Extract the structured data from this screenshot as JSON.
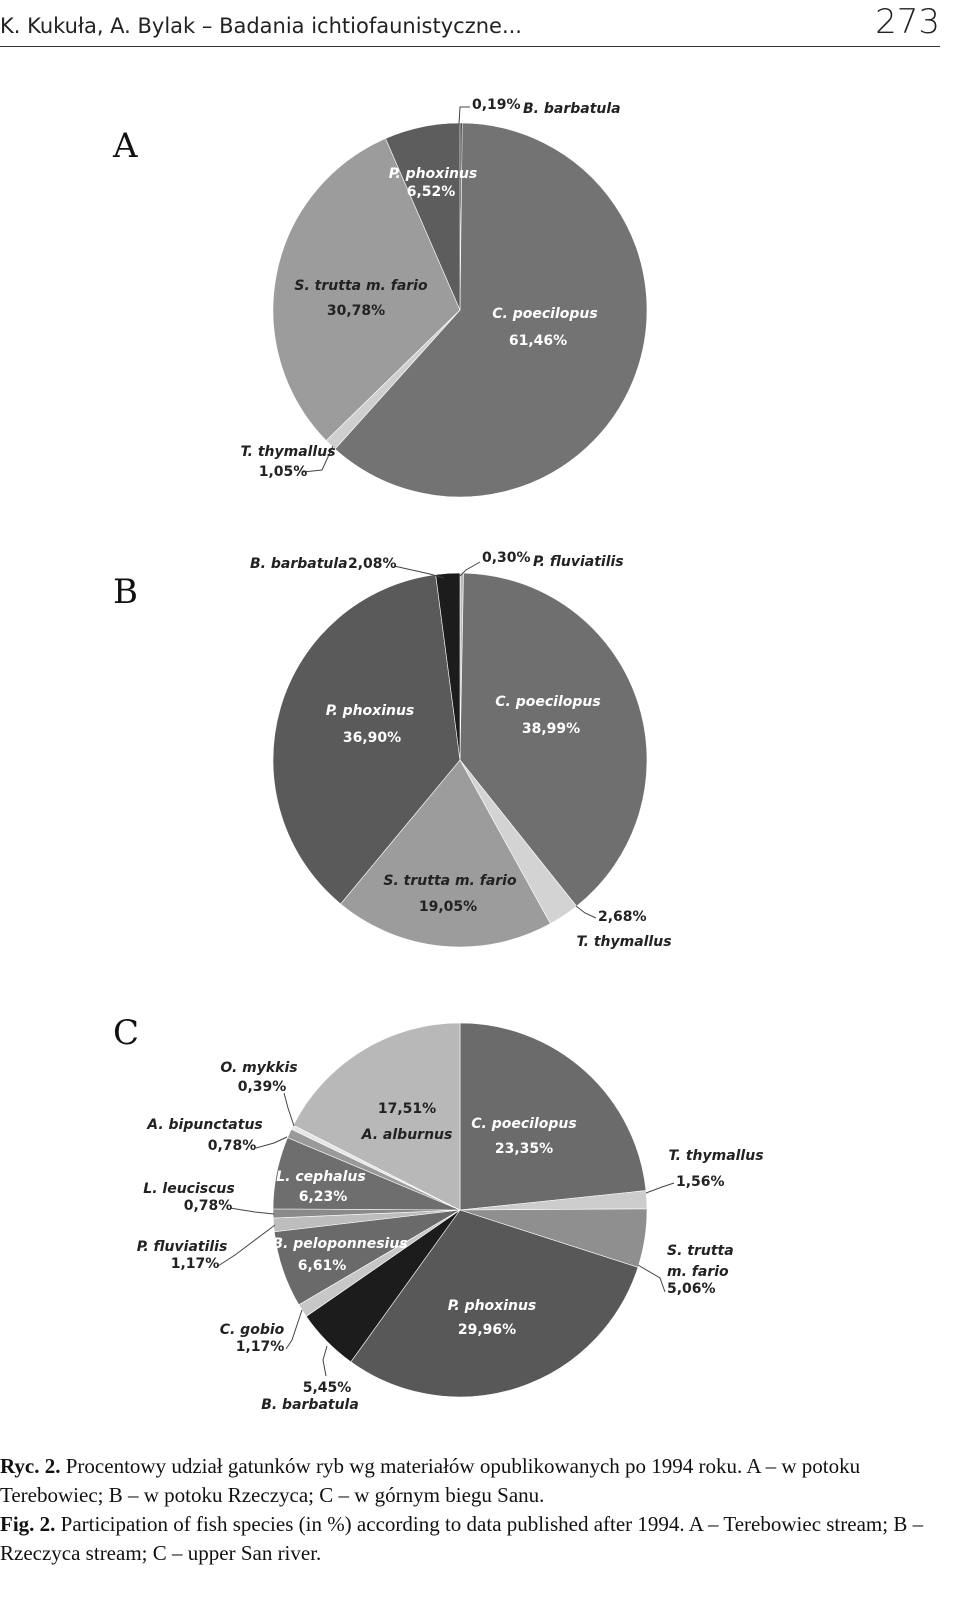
{
  "header": {
    "authors": "K. Kukuła, A. Bylak – Badania ichtiofaunistyczne...",
    "page_number": "273"
  },
  "chart_data": [
    {
      "type": "pie",
      "panel": "A",
      "slices": [
        {
          "label": "B. barbatula",
          "value": 0.19,
          "value_text": "0,19%",
          "color": "#2a2a2a"
        },
        {
          "label": "C. poecilopus",
          "value": 61.46,
          "value_text": "61,46%",
          "color": "#737373"
        },
        {
          "label": "T. thymallus",
          "value": 1.05,
          "value_text": "1,05%",
          "color": "#cfcfcf"
        },
        {
          "label": "S. trutta m. fario",
          "value": 30.78,
          "value_text": "30,78%",
          "color": "#9c9c9c"
        },
        {
          "label": "P. phoxinus",
          "value": 6.52,
          "value_text": "6,52%",
          "color": "#5d5d5d"
        }
      ]
    },
    {
      "type": "pie",
      "panel": "B",
      "slices": [
        {
          "label": "P. fluviatilis",
          "value": 0.3,
          "value_text": "0,30%",
          "color": "#bdbdbd"
        },
        {
          "label": "C. poecilopus",
          "value": 38.99,
          "value_text": "38,99%",
          "color": "#6f6f6f"
        },
        {
          "label": "T. thymallus",
          "value": 2.68,
          "value_text": "2,68%",
          "color": "#d3d3d3"
        },
        {
          "label": "S. trutta m. fario",
          "value": 19.05,
          "value_text": "19,05%",
          "color": "#9c9c9c"
        },
        {
          "label": "P. phoxinus",
          "value": 36.9,
          "value_text": "36,90%",
          "color": "#5a5a5a"
        },
        {
          "label": "B. barbatula",
          "value": 2.08,
          "value_text": "2,08%",
          "color": "#1c1c1c"
        }
      ]
    },
    {
      "type": "pie",
      "panel": "C",
      "slices": [
        {
          "label": "C. poecilopus",
          "value": 23.35,
          "value_text": "23,35%",
          "color": "#6b6b6b"
        },
        {
          "label": "T. thymallus",
          "value": 1.56,
          "value_text": "1,56%",
          "color": "#cccccc"
        },
        {
          "label": "S. trutta m. fario",
          "value": 5.06,
          "value_text": "5,06%",
          "color": "#8f8f8f"
        },
        {
          "label": "P. phoxinus",
          "value": 29.96,
          "value_text": "29,96%",
          "color": "#585858"
        },
        {
          "label": "B. barbatula",
          "value": 5.45,
          "value_text": "5,45%",
          "color": "#1c1c1c"
        },
        {
          "label": "C. gobio",
          "value": 1.17,
          "value_text": "1,17%",
          "color": "#c7c7c7"
        },
        {
          "label": "B. peloponnesius",
          "value": 6.61,
          "value_text": "6,61%",
          "color": "#6a6a6a"
        },
        {
          "label": "P. fluviatilis",
          "value": 1.17,
          "value_text": "1,17%",
          "color": "#bdbdbd"
        },
        {
          "label": "L. leuciscus",
          "value": 0.78,
          "value_text": "0,78%",
          "color": "#8a8a8a"
        },
        {
          "label": "L. cephalus",
          "value": 6.23,
          "value_text": "6,23%",
          "color": "#6e6e6e"
        },
        {
          "label": "A. bipunctatus",
          "value": 0.78,
          "value_text": "0,78%",
          "color": "#9a9a9a"
        },
        {
          "label": "O. mykkis",
          "value": 0.39,
          "value_text": "0,39%",
          "color": "#e6e6e6"
        },
        {
          "label": "A. alburnus",
          "value": 17.51,
          "value_text": "17,51%",
          "color": "#b8b8b8"
        }
      ]
    }
  ],
  "caption": {
    "pl_prefix": "Ryc. 2.",
    "pl_text": "Procentowy udział gatunków ryb wg materiałów opublikowanych po 1994 roku. A – w potoku Terebowiec; B – w potoku Rzeczyca; C – w górnym biegu Sanu.",
    "en_prefix": "Fig. 2.",
    "en_text": "Participation of fish species (in %) according to data published after 1994. A – Terebowiec stream; B – Rzeczyca stream; C – upper San river."
  }
}
